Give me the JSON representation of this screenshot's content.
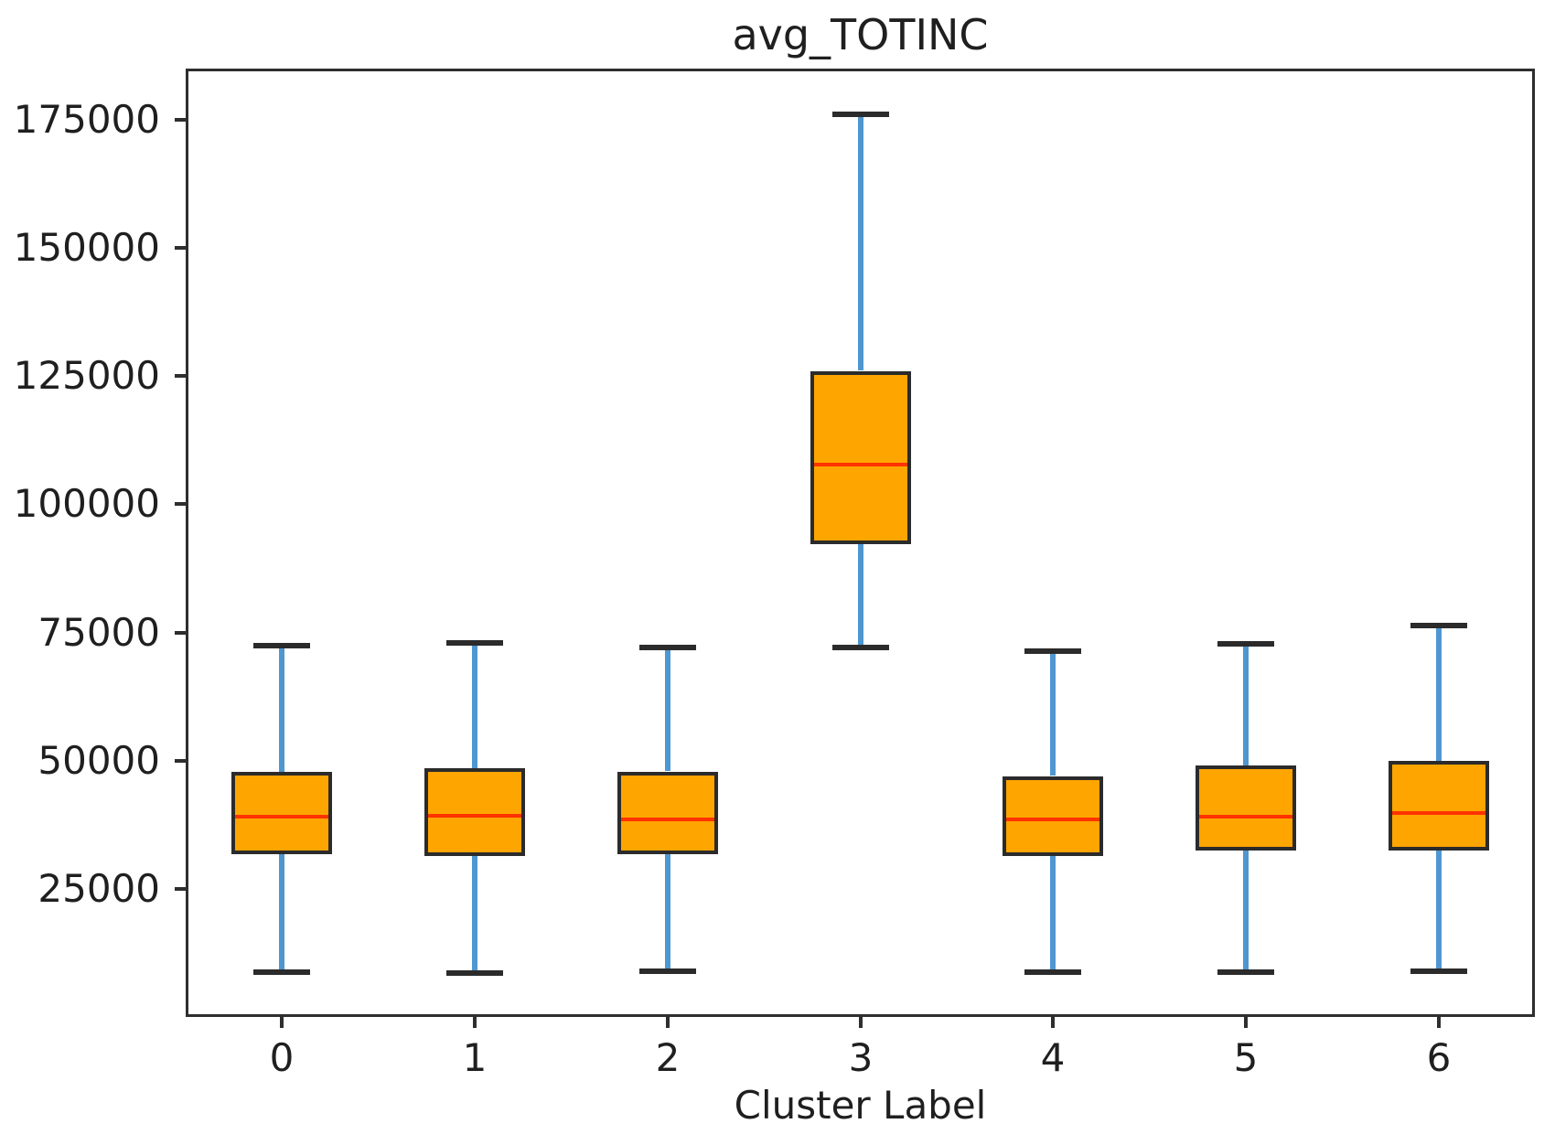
{
  "chart_data": {
    "type": "boxplot",
    "title": "avg_TOTINC",
    "xlabel": "Cluster Label",
    "ylabel": "",
    "categories": [
      "0",
      "1",
      "2",
      "3",
      "4",
      "5",
      "6"
    ],
    "y_ticks": [
      25000,
      50000,
      75000,
      100000,
      125000,
      150000,
      175000
    ],
    "ylim": [
      0,
      185000
    ],
    "grid": false,
    "legend": "none",
    "series": [
      {
        "label": "0",
        "whisker_low": 8700,
        "q1": 31800,
        "median": 39000,
        "q3": 47800,
        "whisker_high": 72500
      },
      {
        "label": "1",
        "whisker_low": 8500,
        "q1": 31400,
        "median": 39200,
        "q3": 48500,
        "whisker_high": 73000
      },
      {
        "label": "2",
        "whisker_low": 9000,
        "q1": 31800,
        "median": 38600,
        "q3": 47900,
        "whisker_high": 72000
      },
      {
        "label": "3",
        "whisker_low": 72000,
        "q1": 92300,
        "median": 107800,
        "q3": 126000,
        "whisker_high": 176000
      },
      {
        "label": "4",
        "whisker_low": 8800,
        "q1": 31500,
        "median": 38500,
        "q3": 47000,
        "whisker_high": 71300
      },
      {
        "label": "5",
        "whisker_low": 8800,
        "q1": 32400,
        "median": 39100,
        "q3": 49000,
        "whisker_high": 72800
      },
      {
        "label": "6",
        "whisker_low": 9000,
        "q1": 32400,
        "median": 39700,
        "q3": 49900,
        "whisker_high": 76400
      }
    ],
    "colors": {
      "box_fill": "#ffa500",
      "box_edge": "#2b2b2b",
      "median": "#ff3200",
      "whisker": "#4f97d0",
      "cap": "#2b2b2b",
      "spine": "#2e2e2e",
      "text": "#1f1f1f"
    }
  }
}
